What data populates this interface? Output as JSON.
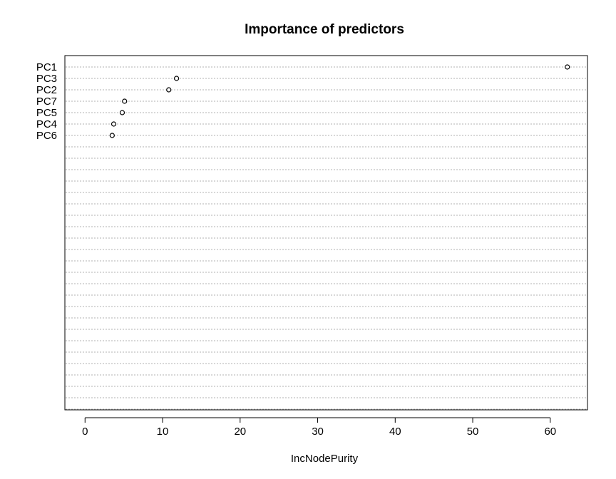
{
  "chart_data": {
    "type": "scatter",
    "title": "Importance of predictors",
    "xlabel": "IncNodePurity",
    "ylabel": "",
    "xlim": [
      -2.6,
      64.8
    ],
    "xticks": [
      0,
      10,
      20,
      30,
      40,
      50,
      60
    ],
    "grid": true,
    "total_rows": 31,
    "categories": [
      "PC1",
      "PC3",
      "PC2",
      "PC7",
      "PC5",
      "PC4",
      "PC6"
    ],
    "values": [
      62.2,
      11.8,
      10.8,
      5.1,
      4.8,
      3.7,
      3.5
    ]
  }
}
